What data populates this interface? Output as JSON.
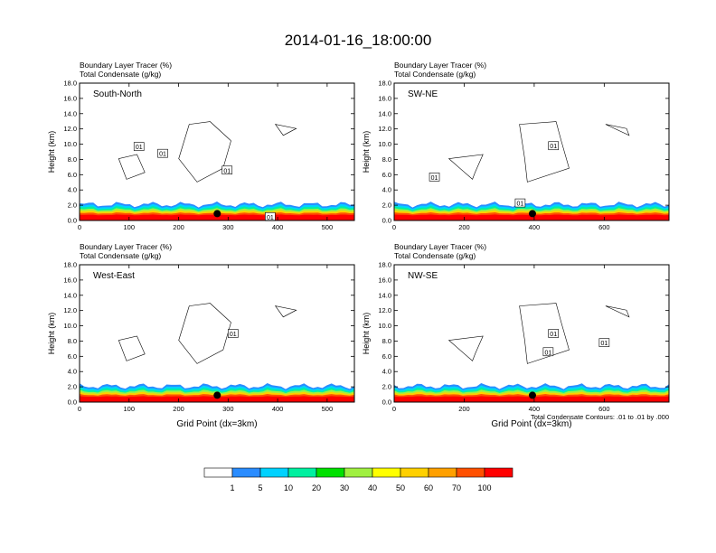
{
  "title": "2014-01-16_18:00:00",
  "header_line1": "Boundary Layer Tracer   (%)",
  "header_line2": "Total Condensate   (g/kg)",
  "ylabel": "Height (km)",
  "xlabel": "Grid Point (dx=3km)",
  "contour_note": "Total Condensate Contours: .01 to .01 by .000",
  "y_ticks": [
    "0.0",
    "2.0",
    "4.0",
    "6.0",
    "8.0",
    "10.0",
    "12.0",
    "14.0",
    "16.0",
    "18.0"
  ],
  "colorbar": {
    "colors": [
      "#ffffff",
      "#2a8cff",
      "#00d2ff",
      "#00f0a0",
      "#00e000",
      "#a0f040",
      "#ffff00",
      "#ffd000",
      "#ffa000",
      "#ff5000",
      "#ff0000"
    ],
    "labels": [
      "1",
      "5",
      "10",
      "20",
      "30",
      "40",
      "50",
      "60",
      "70",
      "100"
    ]
  },
  "chart_data": [
    {
      "type": "contour",
      "name": "South-North",
      "xlim": [
        0,
        555
      ],
      "ylim": [
        0,
        18
      ],
      "x_ticks": [
        0,
        100,
        200,
        300,
        400,
        500
      ],
      "contour_label": "01",
      "contour_labels": [
        {
          "text": "01",
          "x": 120,
          "y": 9.7
        },
        {
          "text": "01",
          "x": 168,
          "y": 8.8
        },
        {
          "text": "01",
          "x": 298,
          "y": 6.6
        },
        {
          "text": "01",
          "x": 385,
          "y": 0.5
        }
      ],
      "marker": {
        "x": 278,
        "y": 0.9
      }
    },
    {
      "type": "contour",
      "name": "SW-NE",
      "xlim": [
        0,
        785
      ],
      "ylim": [
        0,
        18
      ],
      "x_ticks": [
        0,
        200,
        400,
        600
      ],
      "contour_labels": [
        {
          "text": "01",
          "x": 115,
          "y": 5.7
        },
        {
          "text": "01",
          "x": 360,
          "y": 2.3
        },
        {
          "text": "01",
          "x": 455,
          "y": 9.8
        }
      ],
      "marker": {
        "x": 395,
        "y": 0.9
      }
    },
    {
      "type": "contour",
      "name": "West-East",
      "xlim": [
        0,
        555
      ],
      "ylim": [
        0,
        18
      ],
      "x_ticks": [
        0,
        100,
        200,
        300,
        400,
        500
      ],
      "contour_labels": [
        {
          "text": "01",
          "x": 310,
          "y": 9.0
        }
      ],
      "marker": {
        "x": 278,
        "y": 0.9
      }
    },
    {
      "type": "contour",
      "name": "NW-SE",
      "xlim": [
        0,
        785
      ],
      "ylim": [
        0,
        18
      ],
      "x_ticks": [
        0,
        200,
        400,
        600
      ],
      "contour_labels": [
        {
          "text": "01",
          "x": 455,
          "y": 9.0
        },
        {
          "text": "01",
          "x": 440,
          "y": 6.6
        },
        {
          "text": "01",
          "x": 600,
          "y": 7.8
        }
      ],
      "marker": {
        "x": 395,
        "y": 0.9
      }
    }
  ]
}
